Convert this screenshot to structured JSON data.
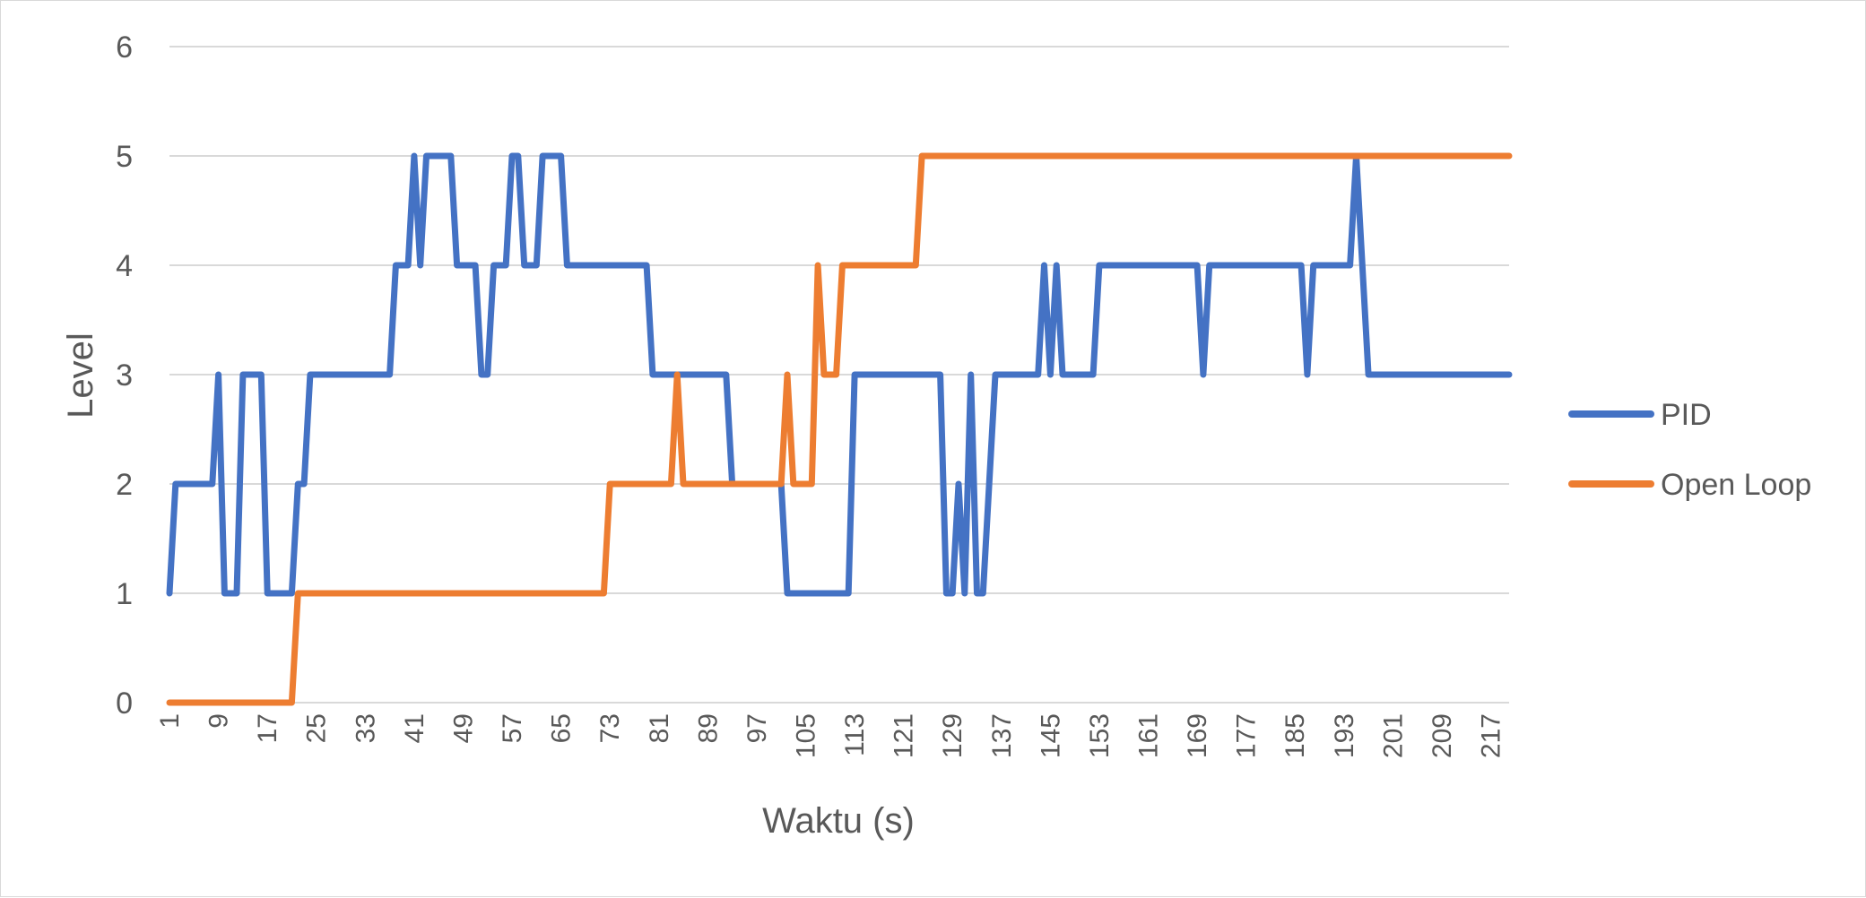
{
  "chart_data": {
    "type": "line",
    "title": "",
    "xlabel": "Waktu (s)",
    "ylabel": "Level",
    "ylim": [
      0,
      6
    ],
    "y_ticks": [
      "0",
      "1",
      "2",
      "3",
      "4",
      "5",
      "6"
    ],
    "x_range": [
      1,
      220
    ],
    "x_tick_labels": [
      "1",
      "9",
      "17",
      "25",
      "33",
      "41",
      "49",
      "57",
      "65",
      "73",
      "81",
      "89",
      "97",
      "105",
      "113",
      "121",
      "129",
      "137",
      "145",
      "153",
      "161",
      "169",
      "177",
      "185",
      "193",
      "201",
      "209",
      "217"
    ],
    "grid": "horizontal",
    "legend_position": "right",
    "series": [
      {
        "name": "PID",
        "color": "#4472C4",
        "points": [
          [
            1,
            1
          ],
          [
            2,
            2
          ],
          [
            8,
            2
          ],
          [
            9,
            3
          ],
          [
            10,
            1
          ],
          [
            12,
            1
          ],
          [
            13,
            3
          ],
          [
            16,
            3
          ],
          [
            17,
            1
          ],
          [
            21,
            1
          ],
          [
            22,
            2
          ],
          [
            23,
            2
          ],
          [
            24,
            3
          ],
          [
            37,
            3
          ],
          [
            38,
            4
          ],
          [
            40,
            4
          ],
          [
            41,
            5
          ],
          [
            42,
            4
          ],
          [
            43,
            5
          ],
          [
            47,
            5
          ],
          [
            48,
            4
          ],
          [
            51,
            4
          ],
          [
            52,
            3
          ],
          [
            53,
            3
          ],
          [
            54,
            4
          ],
          [
            56,
            4
          ],
          [
            57,
            5
          ],
          [
            58,
            5
          ],
          [
            59,
            4
          ],
          [
            61,
            4
          ],
          [
            62,
            5
          ],
          [
            65,
            5
          ],
          [
            66,
            4
          ],
          [
            79,
            4
          ],
          [
            80,
            3
          ],
          [
            92,
            3
          ],
          [
            93,
            2
          ],
          [
            101,
            2
          ],
          [
            102,
            1
          ],
          [
            112,
            1
          ],
          [
            113,
            3
          ],
          [
            127,
            3
          ],
          [
            128,
            1
          ],
          [
            129,
            1
          ],
          [
            130,
            2
          ],
          [
            131,
            1
          ],
          [
            132,
            3
          ],
          [
            133,
            1
          ],
          [
            134,
            1
          ],
          [
            136,
            3
          ],
          [
            143,
            3
          ],
          [
            144,
            4
          ],
          [
            145,
            3
          ],
          [
            146,
            4
          ],
          [
            147,
            3
          ],
          [
            152,
            3
          ],
          [
            153,
            4
          ],
          [
            169,
            4
          ],
          [
            170,
            3
          ],
          [
            171,
            4
          ],
          [
            186,
            4
          ],
          [
            187,
            3
          ],
          [
            188,
            4
          ],
          [
            194,
            4
          ],
          [
            195,
            5
          ],
          [
            197,
            3
          ],
          [
            220,
            3
          ]
        ]
      },
      {
        "name": "Open Loop",
        "color": "#ED7D31",
        "points": [
          [
            1,
            0
          ],
          [
            21,
            0
          ],
          [
            22,
            1
          ],
          [
            72,
            1
          ],
          [
            73,
            2
          ],
          [
            83,
            2
          ],
          [
            84,
            3
          ],
          [
            85,
            2
          ],
          [
            101,
            2
          ],
          [
            102,
            3
          ],
          [
            103,
            2
          ],
          [
            106,
            2
          ],
          [
            107,
            4
          ],
          [
            108,
            3
          ],
          [
            110,
            3
          ],
          [
            111,
            4
          ],
          [
            123,
            4
          ],
          [
            124,
            5
          ],
          [
            220,
            5
          ]
        ]
      }
    ]
  }
}
